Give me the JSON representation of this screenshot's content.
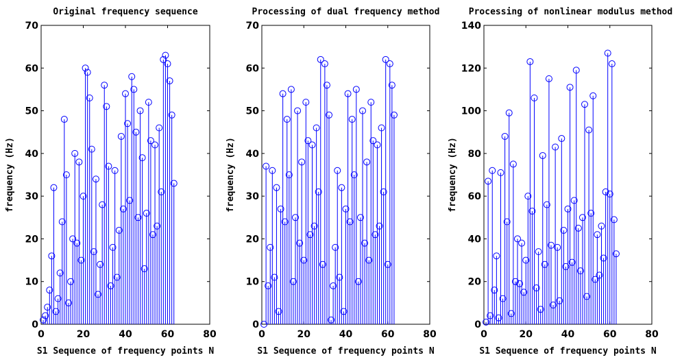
{
  "colors": {
    "stem": "#0000ff",
    "axis": "#000000",
    "background": "#ffffff"
  },
  "chart_data": [
    {
      "type": "stem",
      "title": "Original frequency sequence",
      "xlabel": "S1 Sequence of frequency points N",
      "ylabel": "frequency (Hz)",
      "xlim": [
        0,
        80
      ],
      "ylim": [
        0,
        70
      ],
      "xticks": [
        0,
        20,
        40,
        60,
        80
      ],
      "yticks": [
        0,
        10,
        20,
        30,
        40,
        50,
        60,
        70
      ],
      "x": [
        1,
        2,
        3,
        4,
        5,
        6,
        7,
        8,
        9,
        10,
        11,
        12,
        13,
        14,
        15,
        16,
        17,
        18,
        19,
        20,
        21,
        22,
        23,
        24,
        25,
        26,
        27,
        28,
        29,
        30,
        31,
        32,
        33,
        34,
        35,
        36,
        37,
        38,
        39,
        40,
        41,
        42,
        43,
        44,
        45,
        46,
        47,
        48,
        49,
        50,
        51,
        52,
        53,
        54,
        55,
        56,
        57,
        58,
        59,
        60,
        61,
        62,
        63
      ],
      "values": [
        1,
        2,
        4,
        8,
        16,
        32,
        3,
        6,
        12,
        24,
        48,
        35,
        5,
        10,
        20,
        40,
        19,
        38,
        15,
        30,
        60,
        59,
        53,
        41,
        17,
        34,
        7,
        14,
        28,
        56,
        51,
        37,
        9,
        18,
        36,
        11,
        22,
        44,
        27,
        54,
        47,
        29,
        58,
        55,
        45,
        25,
        50,
        39,
        13,
        26,
        52,
        43,
        21,
        42,
        23,
        46,
        31,
        62,
        63,
        61,
        57,
        49,
        33
      ],
      "grid": false
    },
    {
      "type": "stem",
      "title": "Processing of dual frequency method",
      "xlabel": "S1 Sequence of frequency points N",
      "ylabel": "frequency (Hz)",
      "xlim": [
        0,
        80
      ],
      "ylim": [
        0,
        70
      ],
      "xticks": [
        0,
        20,
        40,
        60,
        80
      ],
      "yticks": [
        0,
        10,
        20,
        30,
        40,
        50,
        60,
        70
      ],
      "x": [
        1,
        2,
        3,
        4,
        5,
        6,
        7,
        8,
        9,
        10,
        11,
        12,
        13,
        14,
        15,
        16,
        17,
        18,
        19,
        20,
        21,
        22,
        23,
        24,
        25,
        26,
        27,
        28,
        29,
        30,
        31,
        32,
        33,
        34,
        35,
        36,
        37,
        38,
        39,
        40,
        41,
        42,
        43,
        44,
        45,
        46,
        47,
        48,
        49,
        50,
        51,
        52,
        53,
        54,
        55,
        56,
        57,
        58,
        59,
        60,
        61,
        62,
        63
      ],
      "values": [
        0,
        37,
        9,
        18,
        36,
        11,
        32,
        3,
        27,
        54,
        24,
        48,
        35,
        55,
        10,
        25,
        50,
        19,
        38,
        15,
        52,
        43,
        21,
        42,
        23,
        46,
        31,
        62,
        14,
        61,
        56,
        49,
        1,
        9,
        18,
        36,
        11,
        32,
        3,
        27,
        54,
        24,
        48,
        35,
        55,
        10,
        25,
        50,
        19,
        38,
        15,
        52,
        43,
        21,
        42,
        23,
        46,
        31,
        62,
        14,
        61,
        56,
        49
      ],
      "grid": false
    },
    {
      "type": "stem",
      "title": "Processing of  nonlinear modulus method",
      "xlabel": "S1 Sequence of frequency points N",
      "ylabel": "frequency (Hz)",
      "xlim": [
        0,
        80
      ],
      "ylim": [
        0,
        140
      ],
      "xticks": [
        0,
        20,
        40,
        60,
        80
      ],
      "yticks": [
        0,
        20,
        40,
        60,
        80,
        100,
        120,
        140
      ],
      "x": [
        1,
        2,
        3,
        4,
        5,
        6,
        7,
        8,
        9,
        10,
        11,
        12,
        13,
        14,
        15,
        16,
        17,
        18,
        19,
        20,
        21,
        22,
        23,
        24,
        25,
        26,
        27,
        28,
        29,
        30,
        31,
        32,
        33,
        34,
        35,
        36,
        37,
        38,
        39,
        40,
        41,
        42,
        43,
        44,
        45,
        46,
        47,
        48,
        49,
        50,
        51,
        52,
        53,
        54,
        55,
        56,
        57,
        58,
        59,
        60,
        61,
        62,
        63
      ],
      "values": [
        1,
        67,
        4,
        72,
        16,
        32,
        3,
        71,
        12,
        88,
        48,
        99,
        5,
        75,
        20,
        40,
        19,
        38,
        15,
        30,
        60,
        123,
        53,
        106,
        17,
        34,
        7,
        79,
        28,
        56,
        115,
        37,
        9,
        83,
        36,
        11,
        87,
        44,
        27,
        54,
        111,
        29,
        58,
        119,
        45,
        25,
        50,
        103,
        13,
        91,
        52,
        107,
        21,
        42,
        23,
        46,
        31,
        62,
        127,
        61,
        122,
        49,
        33
      ],
      "grid": false
    }
  ]
}
